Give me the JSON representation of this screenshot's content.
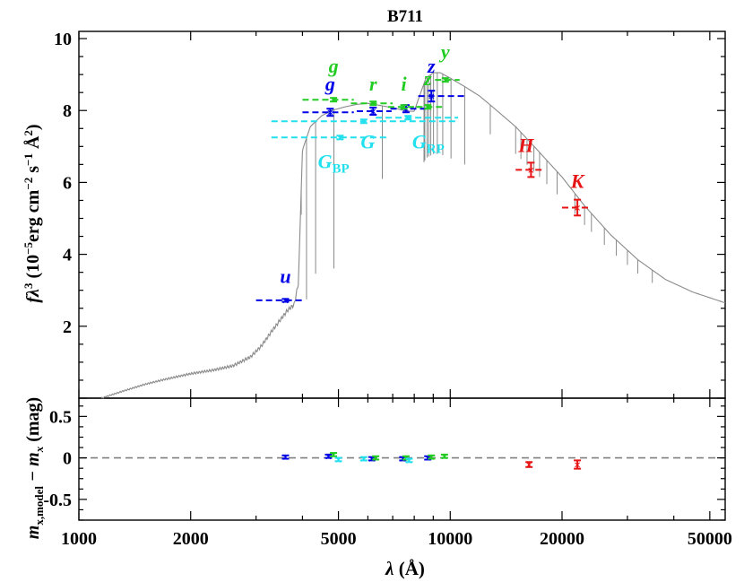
{
  "chart_data": [
    {
      "type": "line",
      "title": "B711",
      "ylabel_parts": {
        "f": "f",
        "lambda": "λ",
        "sup3": "3",
        "unit_open": " (10",
        "exp": "−5",
        "erg": "erg cm",
        "exp2": "−2",
        "s": " s",
        "exp3": "−1",
        "angstrom": " Å",
        "exp4": "2",
        "close": ")"
      },
      "x_scale": "log",
      "xlim": [
        1000,
        55000
      ],
      "ylim": [
        0,
        10.2
      ],
      "yticks": [
        {
          "value": 2,
          "label": "2"
        },
        {
          "value": 4,
          "label": "4"
        },
        {
          "value": 6,
          "label": "6"
        },
        {
          "value": 8,
          "label": "8"
        },
        {
          "value": 10,
          "label": "10"
        }
      ],
      "model_color": "#8a8a8a",
      "model_sed": [
        [
          1150,
          0.0
        ],
        [
          1300,
          0.18
        ],
        [
          1500,
          0.38
        ],
        [
          1700,
          0.52
        ],
        [
          2000,
          0.68
        ],
        [
          2300,
          0.78
        ],
        [
          2600,
          0.9
        ],
        [
          2900,
          1.15
        ],
        [
          3100,
          1.45
        ],
        [
          3300,
          1.85
        ],
        [
          3500,
          2.2
        ],
        [
          3650,
          2.45
        ],
        [
          3800,
          2.6
        ],
        [
          3900,
          3.2
        ],
        [
          4000,
          6.9
        ],
        [
          4200,
          7.55
        ],
        [
          4500,
          7.85
        ],
        [
          4800,
          8.0
        ],
        [
          5200,
          8.1
        ],
        [
          5600,
          8.17
        ],
        [
          6000,
          8.2
        ],
        [
          6400,
          8.15
        ],
        [
          6800,
          8.1
        ],
        [
          7200,
          8.05
        ],
        [
          7600,
          7.98
        ],
        [
          8000,
          7.98
        ],
        [
          8200,
          8.3
        ],
        [
          8600,
          8.9
        ],
        [
          9000,
          9.05
        ],
        [
          9400,
          9.05
        ],
        [
          10000,
          8.9
        ],
        [
          11000,
          8.65
        ],
        [
          12000,
          8.4
        ],
        [
          13000,
          8.1
        ],
        [
          15000,
          7.55
        ],
        [
          17000,
          6.95
        ],
        [
          20000,
          6.15
        ],
        [
          23000,
          5.35
        ],
        [
          27000,
          4.55
        ],
        [
          32000,
          3.85
        ],
        [
          38000,
          3.3
        ],
        [
          45000,
          2.95
        ],
        [
          55000,
          2.65
        ]
      ],
      "absorption_lines": [
        3970,
        4102,
        4340,
        4861,
        6563,
        8498,
        8542,
        8662,
        8750,
        8863,
        9015,
        9229,
        9546,
        10049,
        10938,
        12818,
        15000,
        15500,
        16100,
        16800,
        17400,
        18200,
        19400,
        21660,
        23000,
        24000,
        26000,
        28000,
        30000,
        32000,
        35000
      ],
      "series": [
        {
          "name": "u",
          "color": "#0000e6",
          "points": [
            {
              "x": 3600,
              "y": 2.72,
              "xerr": [
                3000,
                4000
              ],
              "yerr": 0.04
            }
          ]
        },
        {
          "name": "g",
          "color": "#0000e6",
          "points": [
            {
              "x": 4750,
              "y": 7.95,
              "xerr": [
                4000,
                5500
              ],
              "yerr": 0.1
            }
          ]
        },
        {
          "name": "r",
          "color": "#0000e6",
          "points": [
            {
              "x": 6200,
              "y": 7.98,
              "xerr": [
                5600,
                6950
              ],
              "yerr": 0.1
            }
          ]
        },
        {
          "name": "i",
          "color": "#0000e6",
          "points": [
            {
              "x": 7600,
              "y": 8.05,
              "xerr": [
                6900,
                8600
              ],
              "yerr": 0.1
            }
          ]
        },
        {
          "name": "z",
          "color": "#0000e6",
          "points": [
            {
              "x": 8900,
              "y": 8.4,
              "xerr": [
                8200,
                11000
              ],
              "yerr": 0.15
            }
          ]
        },
        {
          "name": "g",
          "color": "#22cc22",
          "points": [
            {
              "x": 4850,
              "y": 8.3,
              "xerr": [
                4000,
                5500
              ],
              "yerr": 0.05
            }
          ]
        },
        {
          "name": "r",
          "color": "#22cc22",
          "points": [
            {
              "x": 6200,
              "y": 8.2,
              "xerr": [
                5400,
                7000
              ],
              "yerr": 0.05
            }
          ]
        },
        {
          "name": "i",
          "color": "#22cc22",
          "points": [
            {
              "x": 7500,
              "y": 8.1,
              "xerr": [
                6800,
                8300
              ],
              "yerr": 0.05
            }
          ]
        },
        {
          "name": "z",
          "color": "#22cc22",
          "points": [
            {
              "x": 8700,
              "y": 8.1,
              "xerr": [
                8100,
                9500
              ],
              "yerr": 0.05
            }
          ]
        },
        {
          "name": "y",
          "color": "#22cc22",
          "points": [
            {
              "x": 9700,
              "y": 8.85,
              "xerr": [
                9100,
                10600
              ],
              "yerr": 0.05
            }
          ]
        },
        {
          "name": "G",
          "color": "#22e0ee",
          "points": [
            {
              "x": 5850,
              "y": 7.7,
              "xerr": [
                3300,
                10500
              ],
              "yerr": 0.05
            }
          ]
        },
        {
          "name": "G_BP",
          "color": "#22e0ee",
          "points": [
            {
              "x": 5050,
              "y": 7.25,
              "xerr": [
                3300,
                6800
              ],
              "yerr": 0.05
            }
          ]
        },
        {
          "name": "G_RP",
          "color": "#22e0ee",
          "points": [
            {
              "x": 7700,
              "y": 7.8,
              "xerr": [
                6300,
                10500
              ],
              "yerr": 0.05
            }
          ]
        },
        {
          "name": "H",
          "color": "#e61414",
          "points": [
            {
              "x": 16500,
              "y": 6.35,
              "xerr": [
                15000,
                18000
              ],
              "yerr": 0.2
            }
          ]
        },
        {
          "name": "K",
          "color": "#e61414",
          "points": [
            {
              "x": 22000,
              "y": 5.3,
              "xerr": [
                20000,
                24000
              ],
              "yerr": 0.22
            }
          ]
        }
      ],
      "band_labels": [
        {
          "text": "u",
          "color": "#0000e6",
          "x": 3600,
          "y": 3.2
        },
        {
          "text": "g",
          "color": "#0000e6",
          "x": 4750,
          "y": 8.55
        },
        {
          "text": "g",
          "color": "#22cc22",
          "x": 4850,
          "y": 9.05
        },
        {
          "text": "r",
          "color": "#22cc22",
          "x": 6200,
          "y": 8.55
        },
        {
          "text": "i",
          "color": "#22cc22",
          "x": 7500,
          "y": 8.55
        },
        {
          "text": "z",
          "color": "#0000e6",
          "x": 8900,
          "y": 9.05
        },
        {
          "text": "z",
          "color": "#22cc22",
          "x": 8700,
          "y": 8.7
        },
        {
          "text": "y",
          "color": "#22cc22",
          "x": 9700,
          "y": 9.45
        },
        {
          "text": "G",
          "color": "#22e0ee",
          "x": 6000,
          "y": 6.95
        },
        {
          "text": "H",
          "color": "#e61414",
          "x": 16000,
          "y": 6.85
        },
        {
          "text": "K",
          "color": "#e61414",
          "x": 22000,
          "y": 5.85
        }
      ],
      "subscript_labels": [
        {
          "main": "G",
          "sub": "BP",
          "color": "#22e0ee",
          "x": 4400,
          "y": 6.4
        },
        {
          "main": "G",
          "sub": "RP",
          "color": "#22e0ee",
          "x": 7900,
          "y": 6.95
        }
      ]
    },
    {
      "type": "scatter",
      "ylabel_parts": {
        "m": "m",
        "sub1": "x,model",
        "minus": " − m",
        "sub2": "x",
        "unit": " (mag)"
      },
      "xlabel_parts": {
        "lambda": "λ",
        "unit": " (Å)"
      },
      "x_scale": "log",
      "xlim": [
        1000,
        55000
      ],
      "ylim": [
        -0.75,
        0.72
      ],
      "yticks": [
        {
          "value": 0.5,
          "label": "0.5"
        },
        {
          "value": 0,
          "label": "0"
        },
        {
          "value": -0.5,
          "label": "-0.5"
        }
      ],
      "xticks": [
        {
          "value": 1000,
          "label": "1000"
        },
        {
          "value": 2000,
          "label": "2000"
        },
        {
          "value": 5000,
          "label": "5000"
        },
        {
          "value": 10000,
          "label": "10000"
        },
        {
          "value": 20000,
          "label": "20000"
        },
        {
          "value": 50000,
          "label": "50000"
        }
      ],
      "zero_line_color": "#808080",
      "residuals": [
        {
          "x": 3600,
          "y": 0.01,
          "yerr": 0.02,
          "color": "#0000e6"
        },
        {
          "x": 4700,
          "y": 0.02,
          "yerr": 0.02,
          "color": "#0000e6"
        },
        {
          "x": 4850,
          "y": 0.04,
          "yerr": 0.02,
          "color": "#22cc22"
        },
        {
          "x": 5000,
          "y": -0.02,
          "yerr": 0.02,
          "color": "#22e0ee"
        },
        {
          "x": 5850,
          "y": -0.01,
          "yerr": 0.02,
          "color": "#22e0ee"
        },
        {
          "x": 6150,
          "y": -0.01,
          "yerr": 0.02,
          "color": "#0000e6"
        },
        {
          "x": 6300,
          "y": 0.0,
          "yerr": 0.02,
          "color": "#22cc22"
        },
        {
          "x": 7450,
          "y": -0.01,
          "yerr": 0.02,
          "color": "#0000e6"
        },
        {
          "x": 7600,
          "y": 0.0,
          "yerr": 0.02,
          "color": "#22cc22"
        },
        {
          "x": 7750,
          "y": -0.03,
          "yerr": 0.02,
          "color": "#22e0ee"
        },
        {
          "x": 8700,
          "y": 0.0,
          "yerr": 0.02,
          "color": "#0000e6"
        },
        {
          "x": 8900,
          "y": 0.01,
          "yerr": 0.02,
          "color": "#22cc22"
        },
        {
          "x": 9650,
          "y": 0.02,
          "yerr": 0.02,
          "color": "#22cc22"
        },
        {
          "x": 16300,
          "y": -0.08,
          "yerr": 0.03,
          "color": "#e61414"
        },
        {
          "x": 22000,
          "y": -0.08,
          "yerr": 0.05,
          "color": "#e61414"
        }
      ]
    }
  ]
}
